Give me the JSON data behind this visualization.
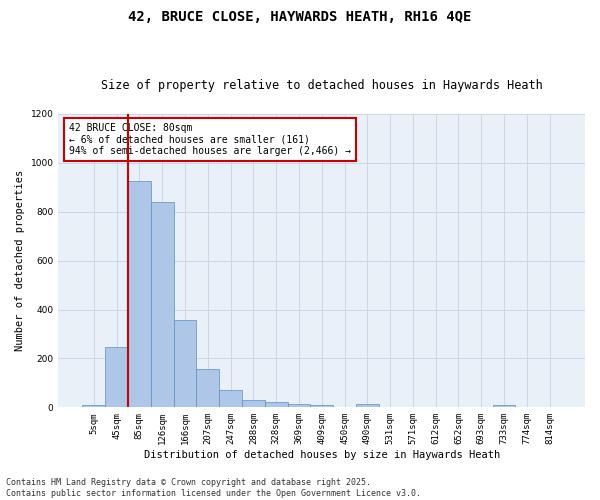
{
  "title_line1": "42, BRUCE CLOSE, HAYWARDS HEATH, RH16 4QE",
  "title_line2": "Size of property relative to detached houses in Haywards Heath",
  "xlabel": "Distribution of detached houses by size in Haywards Heath",
  "ylabel": "Number of detached properties",
  "categories": [
    "5sqm",
    "45sqm",
    "85sqm",
    "126sqm",
    "166sqm",
    "207sqm",
    "247sqm",
    "288sqm",
    "328sqm",
    "369sqm",
    "409sqm",
    "450sqm",
    "490sqm",
    "531sqm",
    "571sqm",
    "612sqm",
    "652sqm",
    "693sqm",
    "733sqm",
    "774sqm",
    "814sqm"
  ],
  "values": [
    8,
    247,
    924,
    840,
    358,
    158,
    70,
    32,
    22,
    13,
    10,
    0,
    12,
    3,
    0,
    0,
    0,
    0,
    8,
    0,
    0
  ],
  "bar_color": "#aec6e8",
  "bar_edge_color": "#5a8fc2",
  "vline_color": "#cc0000",
  "annotation_text": "42 BRUCE CLOSE: 80sqm\n← 6% of detached houses are smaller (161)\n94% of semi-detached houses are larger (2,466) →",
  "annotation_box_color": "#ffffff",
  "annotation_box_edge": "#cc0000",
  "ylim": [
    0,
    1200
  ],
  "yticks": [
    0,
    200,
    400,
    600,
    800,
    1000,
    1200
  ],
  "grid_color": "#c8d8e8",
  "background_color": "#eaf0f8",
  "footer_line1": "Contains HM Land Registry data © Crown copyright and database right 2025.",
  "footer_line2": "Contains public sector information licensed under the Open Government Licence v3.0.",
  "title_fontsize": 10,
  "subtitle_fontsize": 8.5,
  "axis_label_fontsize": 7.5,
  "tick_fontsize": 6.5,
  "annotation_fontsize": 7,
  "footer_fontsize": 6
}
